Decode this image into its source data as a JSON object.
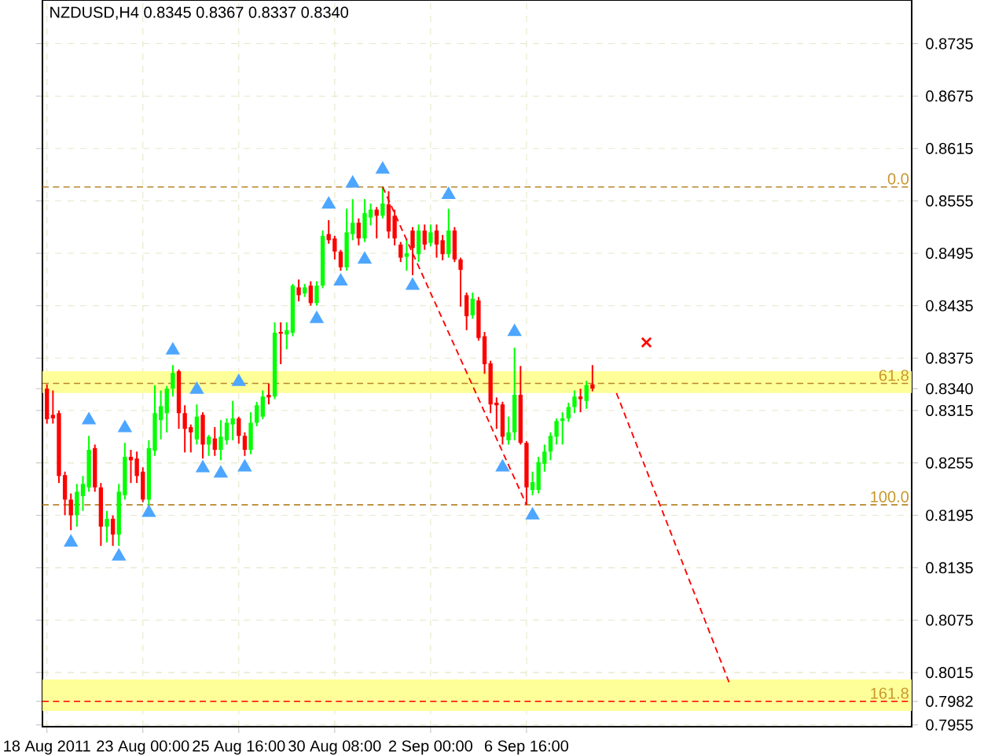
{
  "chart_data": {
    "type": "candlestick",
    "title": "NZDUSD,H4  0.8345 0.8367 0.8337 0.8340",
    "categories": [
      "18 Aug 2011",
      null,
      null,
      null,
      null,
      null,
      null,
      null,
      null,
      null,
      null,
      null,
      null,
      null,
      null,
      null,
      "23 Aug 00:00",
      null,
      null,
      null,
      null,
      null,
      null,
      null,
      null,
      null,
      null,
      null,
      null,
      null,
      null,
      null,
      "25 Aug 16:00",
      null,
      null,
      null,
      null,
      null,
      null,
      null,
      null,
      null,
      null,
      null,
      null,
      null,
      null,
      null,
      "30 Aug 08:00",
      null,
      null,
      null,
      null,
      null,
      null,
      null,
      null,
      null,
      null,
      null,
      null,
      null,
      null,
      null,
      "2 Sep 00:00",
      null,
      null,
      null,
      null,
      null,
      null,
      null,
      null,
      null,
      null,
      null,
      null,
      null,
      null,
      null,
      "6 Sep 16:00",
      null,
      null,
      null,
      null,
      null,
      null,
      null,
      null,
      null,
      null,
      null,
      null,
      null,
      null,
      null,
      null,
      null,
      null,
      null,
      null,
      null,
      null,
      null,
      null,
      null,
      null,
      null,
      null,
      null,
      null,
      null,
      null,
      null,
      null,
      null,
      null,
      null,
      null,
      null,
      null,
      null,
      null,
      null,
      null,
      null,
      null,
      null,
      null,
      null,
      null,
      null,
      null,
      null,
      null,
      null,
      null,
      null,
      null,
      null,
      null,
      null,
      null,
      null,
      null
    ],
    "ohlc": [
      [
        0.834,
        0.8345,
        0.83,
        0.8305
      ],
      [
        0.831,
        0.8338,
        0.83,
        0.8306
      ],
      [
        0.8312,
        0.8315,
        0.8232,
        0.824
      ],
      [
        0.8241,
        0.8245,
        0.8195,
        0.8213
      ],
      [
        0.8213,
        0.822,
        0.8178,
        0.8195
      ],
      [
        0.8195,
        0.8231,
        0.8182,
        0.8222
      ],
      [
        0.8217,
        0.824,
        0.82,
        0.8231
      ],
      [
        0.8227,
        0.8286,
        0.8222,
        0.827
      ],
      [
        0.8272,
        0.8276,
        0.8222,
        0.8227
      ],
      [
        0.8227,
        0.8232,
        0.816,
        0.8182
      ],
      [
        0.8182,
        0.82,
        0.8164,
        0.8191
      ],
      [
        0.8191,
        0.8195,
        0.816,
        0.8173
      ],
      [
        0.8173,
        0.8231,
        0.816,
        0.8222
      ],
      [
        0.8218,
        0.8278,
        0.8213,
        0.8262
      ],
      [
        0.8262,
        0.827,
        0.8232,
        0.8258
      ],
      [
        0.826,
        0.8268,
        0.8232,
        0.824
      ],
      [
        0.8245,
        0.825,
        0.821,
        0.8213
      ],
      [
        0.8213,
        0.8281,
        0.8206,
        0.8272
      ],
      [
        0.8269,
        0.8344,
        0.8263,
        0.8312
      ],
      [
        0.8304,
        0.8338,
        0.8282,
        0.832
      ],
      [
        0.8312,
        0.8343,
        0.829,
        0.834
      ],
      [
        0.834,
        0.8367,
        0.8331,
        0.8358
      ],
      [
        0.836,
        0.8362,
        0.8294,
        0.8312
      ],
      [
        0.8312,
        0.8321,
        0.8267,
        0.8294
      ],
      [
        0.8296,
        0.8299,
        0.8267,
        0.829
      ],
      [
        0.8282,
        0.8322,
        0.8276,
        0.8308
      ],
      [
        0.831,
        0.8313,
        0.826,
        0.8276
      ],
      [
        0.8276,
        0.8287,
        0.8263,
        0.8285
      ],
      [
        0.8283,
        0.8296,
        0.8263,
        0.827
      ],
      [
        0.827,
        0.8304,
        0.8258,
        0.8285
      ],
      [
        0.8281,
        0.8306,
        0.8276,
        0.8301
      ],
      [
        0.8299,
        0.8326,
        0.8281,
        0.8306
      ],
      [
        0.8306,
        0.8308,
        0.8277,
        0.8286
      ],
      [
        0.8286,
        0.829,
        0.8263,
        0.827
      ],
      [
        0.827,
        0.8313,
        0.8265,
        0.8301
      ],
      [
        0.8301,
        0.8325,
        0.8297,
        0.8321
      ],
      [
        0.8308,
        0.8338,
        0.8305,
        0.8331
      ],
      [
        0.8333,
        0.8346,
        0.8322,
        0.833
      ],
      [
        0.8331,
        0.8416,
        0.8328,
        0.8404
      ],
      [
        0.8405,
        0.8416,
        0.8368,
        0.8403
      ],
      [
        0.8402,
        0.8416,
        0.8385,
        0.8407
      ],
      [
        0.8404,
        0.846,
        0.84,
        0.8458
      ],
      [
        0.8456,
        0.8465,
        0.844,
        0.8447
      ],
      [
        0.8449,
        0.846,
        0.8445,
        0.8456
      ],
      [
        0.8458,
        0.8463,
        0.8435,
        0.8438
      ],
      [
        0.8438,
        0.8463,
        0.8435,
        0.8458
      ],
      [
        0.8458,
        0.8521,
        0.8455,
        0.8515
      ],
      [
        0.8517,
        0.8533,
        0.8506,
        0.851
      ],
      [
        0.8512,
        0.8515,
        0.8488,
        0.8497
      ],
      [
        0.8497,
        0.8499,
        0.8475,
        0.8479
      ],
      [
        0.8479,
        0.8546,
        0.8475,
        0.8519
      ],
      [
        0.8517,
        0.8557,
        0.851,
        0.853
      ],
      [
        0.853,
        0.8535,
        0.8504,
        0.8512
      ],
      [
        0.8512,
        0.8557,
        0.8508,
        0.8541
      ],
      [
        0.8536,
        0.8552,
        0.8527,
        0.8545
      ],
      [
        0.8545,
        0.8548,
        0.8512,
        0.8538
      ],
      [
        0.8538,
        0.8571,
        0.8535,
        0.8552
      ],
      [
        0.8551,
        0.8566,
        0.8512,
        0.852
      ],
      [
        0.8538,
        0.8545,
        0.8504,
        0.8512
      ],
      [
        0.8505,
        0.8508,
        0.8485,
        0.849
      ],
      [
        0.8491,
        0.8512,
        0.8475,
        0.8495
      ],
      [
        0.8521,
        0.8525,
        0.847,
        0.8501
      ],
      [
        0.8494,
        0.8528,
        0.8485,
        0.8521
      ],
      [
        0.8521,
        0.8528,
        0.8499,
        0.8505
      ],
      [
        0.8507,
        0.8528,
        0.8503,
        0.8519
      ],
      [
        0.8521,
        0.8528,
        0.849,
        0.8505
      ],
      [
        0.851,
        0.8516,
        0.8487,
        0.8494
      ],
      [
        0.8494,
        0.8546,
        0.849,
        0.8521
      ],
      [
        0.8521,
        0.8525,
        0.8485,
        0.8488
      ],
      [
        0.8488,
        0.849,
        0.8434,
        0.8476
      ],
      [
        0.8447,
        0.845,
        0.8407,
        0.8423
      ],
      [
        0.8424,
        0.845,
        0.842,
        0.8443
      ],
      [
        0.8441,
        0.8445,
        0.8395,
        0.8398
      ],
      [
        0.84,
        0.8405,
        0.8357,
        0.8368
      ],
      [
        0.8369,
        0.8372,
        0.8312,
        0.8322
      ],
      [
        0.8324,
        0.833,
        0.8294,
        0.8321
      ],
      [
        0.8322,
        0.8325,
        0.8276,
        0.8285
      ],
      [
        0.8281,
        0.8308,
        0.8276,
        0.829
      ],
      [
        0.829,
        0.8387,
        0.8281,
        0.8333
      ],
      [
        0.8333,
        0.8366,
        0.8276,
        0.8278
      ],
      [
        0.8278,
        0.828,
        0.8207,
        0.8227
      ],
      [
        0.8224,
        0.8245,
        0.8218,
        0.8233
      ],
      [
        0.8224,
        0.8262,
        0.822,
        0.8256
      ],
      [
        0.8254,
        0.8276,
        0.8245,
        0.8268
      ],
      [
        0.8268,
        0.829,
        0.8258,
        0.8286
      ],
      [
        0.8285,
        0.8306,
        0.8276,
        0.8303
      ],
      [
        0.8303,
        0.8313,
        0.8276,
        0.8306
      ],
      [
        0.8306,
        0.8324,
        0.8302,
        0.8319
      ],
      [
        0.8319,
        0.8338,
        0.8312,
        0.8331
      ],
      [
        0.8331,
        0.834,
        0.8313,
        0.8328
      ],
      [
        0.8326,
        0.8349,
        0.8317,
        0.8344
      ],
      [
        0.8345,
        0.8367,
        0.8337,
        0.834
      ],
      null,
      null,
      null,
      null,
      null,
      null,
      null,
      null,
      null,
      null,
      null,
      null,
      null,
      null,
      null,
      null,
      null,
      null,
      null,
      null,
      null,
      null,
      null,
      null,
      null,
      null,
      null,
      null,
      null,
      null,
      null,
      null,
      null,
      null,
      null,
      null,
      null,
      null,
      null,
      null,
      null,
      null,
      null,
      null,
      null,
      null,
      null,
      null,
      null,
      null,
      null,
      null,
      null
    ],
    "colors": [
      "#ff0000",
      "#ff0000",
      "#ff0000",
      "#ff0000",
      "#ff0000",
      "#00ff00",
      "#00ff00",
      "#00ff00",
      "#ff0000",
      "#ff0000",
      "#00ff00",
      "#ff0000",
      "#00ff00",
      "#00ff00",
      "#ff0000",
      "#ff0000",
      "#ff0000",
      "#00ff00",
      "#00ff00",
      "#00ff00",
      "#00ff00",
      "#00ff00",
      "#ff0000",
      "#ff0000",
      "#ff0000",
      "#00ff00",
      "#ff0000",
      "#00ff00",
      "#ff0000",
      "#00ff00",
      "#00ff00",
      "#00ff00",
      "#ff0000",
      "#ff0000",
      "#00ff00",
      "#00ff00",
      "#00ff00",
      "#ff0000",
      "#00ff00",
      "#ff0000",
      "#00ff00",
      "#00ff00",
      "#ff0000",
      "#00ff00",
      "#ff0000",
      "#00ff00",
      "#00ff00",
      "#ff0000",
      "#ff0000",
      "#ff0000",
      "#00ff00",
      "#00ff00",
      "#ff0000",
      "#00ff00",
      "#00ff00",
      "#ff0000",
      "#00ff00",
      "#ff0000",
      "#ff0000",
      "#ff0000",
      "#00ff00",
      "#ff0000",
      "#00ff00",
      "#ff0000",
      "#00ff00",
      "#ff0000",
      "#ff0000",
      "#00ff00",
      "#ff0000",
      "#ff0000",
      "#ff0000",
      "#00ff00",
      "#ff0000",
      "#ff0000",
      "#ff0000",
      "#ff0000",
      "#ff0000",
      "#00ff00",
      "#00ff00",
      "#ff0000",
      "#ff0000",
      "#00ff00",
      "#00ff00",
      "#00ff00",
      "#00ff00",
      "#00ff00",
      "#00ff00",
      "#00ff00",
      "#00ff00",
      "#ff0000",
      "#00ff00",
      "#ff0000",
      null,
      null,
      null,
      null,
      null,
      null,
      null,
      null,
      null,
      null,
      null,
      null,
      null,
      null,
      null,
      null,
      null,
      null,
      null,
      null,
      null,
      null,
      null,
      null,
      null,
      null,
      null,
      null,
      null,
      null,
      null,
      null,
      null,
      null,
      null,
      null,
      null,
      null,
      null,
      null,
      null,
      null,
      null,
      null,
      null,
      null,
      null,
      null,
      null,
      null,
      null,
      null,
      null
    ],
    "series": [
      {
        "type": "scatter",
        "color": "#4da6ff",
        "marker": "triangle",
        "values": [
          null,
          null,
          null,
          null,
          null,
          null,
          null,
          0.8304,
          null,
          null,
          null,
          null,
          null,
          0.8295,
          null,
          null,
          null,
          null,
          null,
          null,
          null,
          0.8384,
          null,
          null,
          null,
          0.8339,
          null,
          null,
          null,
          null,
          null,
          null,
          0.8348,
          null,
          null,
          null,
          null,
          null,
          null,
          null,
          null,
          null,
          null,
          null,
          null,
          null,
          null,
          0.8551,
          null,
          null,
          null,
          0.8575,
          null,
          null,
          null,
          null,
          0.8591,
          null,
          null,
          null,
          null,
          null,
          null,
          null,
          null,
          null,
          null,
          0.8562,
          null,
          null,
          null,
          null,
          null,
          null,
          null,
          null,
          null,
          null,
          0.8405,
          null,
          null,
          null,
          null,
          null,
          null,
          null,
          null,
          null,
          null,
          null,
          null,
          null,
          null,
          null,
          null,
          null,
          null,
          null,
          null,
          null,
          null,
          null,
          null,
          null,
          null,
          null,
          null,
          null,
          null,
          null,
          null,
          null,
          null,
          null,
          null,
          null,
          null,
          null,
          null,
          null,
          null,
          null,
          null,
          null,
          null,
          null,
          null,
          null,
          null,
          null,
          null,
          null,
          null,
          null,
          null,
          null,
          null,
          null,
          null,
          null,
          null,
          null,
          null,
          null,
          null
        ]
      },
      {
        "type": "scatter",
        "color": "#4da6ff",
        "marker": "triangle",
        "values": [
          null,
          null,
          null,
          null,
          0.8164,
          null,
          null,
          null,
          null,
          null,
          null,
          null,
          0.8148,
          null,
          null,
          null,
          null,
          0.8198,
          null,
          null,
          null,
          null,
          null,
          null,
          null,
          null,
          0.8249,
          null,
          null,
          0.8243,
          null,
          null,
          null,
          0.825,
          null,
          null,
          null,
          null,
          null,
          null,
          null,
          null,
          null,
          null,
          null,
          0.842,
          null,
          null,
          null,
          0.8463,
          null,
          null,
          null,
          0.8488,
          null,
          null,
          null,
          null,
          null,
          null,
          null,
          0.8458,
          null,
          null,
          null,
          null,
          null,
          null,
          null,
          null,
          null,
          null,
          null,
          null,
          null,
          null,
          0.825,
          null,
          null,
          null,
          null,
          0.8195,
          null,
          null,
          null,
          null,
          null,
          null,
          null,
          null,
          null,
          null,
          null,
          null,
          null,
          null,
          null,
          null,
          null,
          null,
          null,
          null,
          null,
          null,
          null,
          null,
          null,
          null,
          null,
          null,
          null,
          null,
          null,
          null,
          null,
          null,
          null,
          null,
          null,
          null,
          null,
          null,
          null,
          null,
          null,
          null,
          null,
          null,
          null,
          null,
          null,
          null,
          null,
          null,
          null,
          null,
          null,
          null,
          null,
          null,
          null,
          null,
          null,
          null,
          null
        ]
      },
      {
        "type": "scatter",
        "color": "#ff0000",
        "marker": "cross",
        "values": [
          null,
          null,
          null,
          null,
          null,
          null,
          null,
          null,
          null,
          null,
          null,
          null,
          null,
          null,
          null,
          null,
          null,
          null,
          null,
          null,
          null,
          null,
          null,
          null,
          null,
          null,
          null,
          null,
          null,
          null,
          null,
          null,
          null,
          null,
          null,
          null,
          null,
          null,
          null,
          null,
          null,
          null,
          null,
          null,
          null,
          null,
          null,
          null,
          null,
          null,
          null,
          null,
          null,
          null,
          null,
          null,
          null,
          null,
          null,
          null,
          null,
          null,
          null,
          null,
          null,
          null,
          null,
          null,
          null,
          null,
          null,
          null,
          null,
          null,
          null,
          null,
          null,
          null,
          null,
          null,
          null,
          null,
          null,
          null,
          null,
          null,
          null,
          null,
          null,
          null,
          null,
          null,
          null,
          null,
          null,
          null,
          null,
          null,
          null,
          null,
          0.8393,
          null,
          null,
          null,
          null,
          null,
          null,
          null,
          null,
          null,
          null,
          null,
          null,
          null,
          null,
          null,
          null,
          null,
          null,
          null,
          null,
          null,
          null,
          null,
          null,
          null,
          null,
          null,
          null,
          null,
          null,
          null,
          null,
          null,
          null,
          null,
          null,
          null,
          null,
          null,
          null,
          null,
          null,
          null,
          null
        ]
      },
      {
        "type": "line",
        "color": "#ff0000",
        "line_style": "dashed",
        "values": [
          null,
          null,
          null,
          null,
          null,
          null,
          null,
          null,
          null,
          null,
          null,
          null,
          null,
          null,
          null,
          null,
          null,
          null,
          null,
          null,
          null,
          null,
          null,
          null,
          null,
          null,
          null,
          null,
          null,
          null,
          null,
          null,
          null,
          null,
          null,
          null,
          null,
          null,
          null,
          null,
          null,
          null,
          null,
          null,
          null,
          null,
          null,
          null,
          null,
          null,
          null,
          null,
          null,
          null,
          null,
          null,
          0.8571,
          null,
          null,
          null,
          null,
          null,
          null,
          null,
          null,
          null,
          null,
          null,
          null,
          null,
          null,
          null,
          null,
          null,
          null,
          null,
          null,
          null,
          null,
          null,
          0.8207,
          null,
          null,
          null,
          null,
          null,
          null,
          null,
          null,
          null,
          null,
          null,
          null,
          null,
          null,
          null,
          null,
          null,
          null,
          null,
          null,
          null,
          null,
          null,
          null,
          null,
          null,
          null,
          null,
          null,
          null,
          null,
          null,
          null,
          null,
          null,
          null,
          null,
          null,
          null,
          null,
          null,
          null,
          null,
          null,
          null,
          null,
          null,
          null,
          null,
          null,
          null,
          null,
          null,
          null,
          null,
          null,
          null,
          null,
          null,
          null,
          null,
          null,
          null,
          null
        ]
      },
      {
        "type": "line",
        "color": "#ff0000",
        "line_style": "dashed",
        "values": [
          null,
          null,
          null,
          null,
          null,
          null,
          null,
          null,
          null,
          null,
          null,
          null,
          null,
          null,
          null,
          null,
          null,
          null,
          null,
          null,
          null,
          null,
          null,
          null,
          null,
          null,
          null,
          null,
          null,
          null,
          null,
          null,
          null,
          null,
          null,
          null,
          null,
          null,
          null,
          null,
          null,
          null,
          null,
          null,
          null,
          null,
          null,
          null,
          null,
          null,
          null,
          null,
          null,
          null,
          null,
          null,
          null,
          null,
          null,
          null,
          null,
          null,
          null,
          null,
          null,
          null,
          null,
          null,
          null,
          null,
          null,
          null,
          null,
          null,
          null,
          null,
          null,
          null,
          null,
          null,
          null,
          null,
          null,
          null,
          null,
          null,
          null,
          null,
          null,
          null,
          null,
          null,
          null,
          null,
          null,
          0.8335,
          null,
          null,
          null,
          null,
          null,
          null,
          null,
          null,
          null,
          null,
          null,
          null,
          null,
          null,
          null,
          null,
          null,
          null,
          0.8,
          null,
          null,
          null,
          null,
          null,
          null,
          null,
          null,
          null,
          null,
          null,
          null,
          null,
          null,
          null,
          null,
          null,
          null,
          null,
          null,
          null,
          null,
          null,
          null,
          null,
          null,
          null,
          null,
          null,
          null
        ]
      }
    ],
    "ylim": [
      0.7953,
      0.8785
    ],
    "yticks": [
      0.8735,
      0.8675,
      0.8615,
      0.8555,
      0.8495,
      0.8435,
      0.8375,
      0.8315,
      0.8255,
      0.8195,
      0.8135,
      0.8075,
      0.8015,
      0.7955,
      {
        "value": 0.834,
        "label": "0.8340"
      },
      {
        "value": 0.7982,
        "label": "0.7982"
      }
    ],
    "ref_lines": [
      {
        "axis": "y",
        "value": 0.8571,
        "color": "#b8862b",
        "line_style": "dashed"
      },
      {
        "axis": "y",
        "value": 0.8346,
        "color": "#b8862b",
        "line_style": "dashed"
      },
      {
        "axis": "y",
        "value": 0.8207,
        "color": "#b8862b",
        "line_style": "dashed"
      },
      {
        "axis": "y",
        "value": 0.7982,
        "color": "#ff0000",
        "line_style": "dashed"
      }
    ],
    "annotations": [
      {
        "text": "0.0",
        "y": 0.8571
      },
      {
        "text": "61.8",
        "y": 0.8346
      },
      {
        "text": "100.0",
        "y": 0.8207
      },
      {
        "text": "161.8",
        "y": 0.7982
      }
    ],
    "bands": [
      {
        "axis": "y",
        "from": 0.8335,
        "to": 0.836,
        "color": "#ffff99"
      },
      {
        "axis": "y",
        "from": 0.7971,
        "to": 0.8007,
        "color": "#ffff99"
      }
    ],
    "grid": true
  }
}
